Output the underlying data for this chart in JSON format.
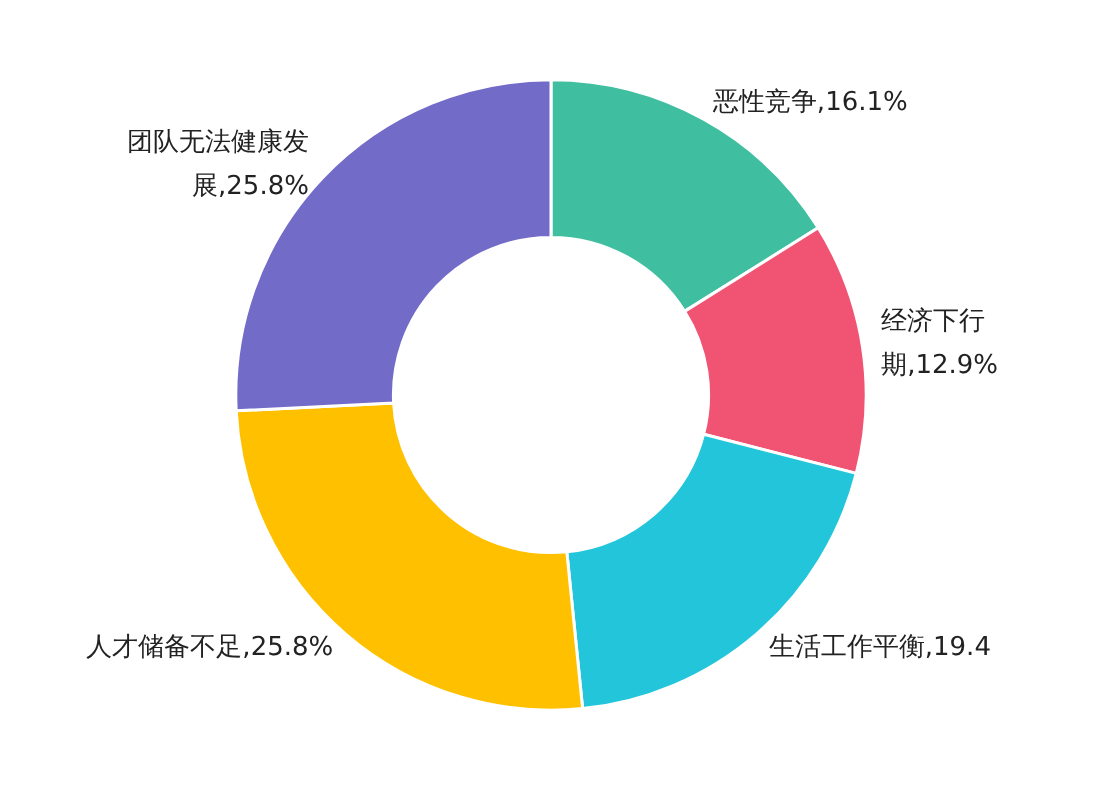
{
  "chart_data": {
    "type": "donut",
    "categories": [
      "恶性竞争",
      "经济下行期",
      "生活工作平衡",
      "人才储备不足",
      "团队无法健康发展"
    ],
    "values": [
      16.1,
      12.9,
      19.4,
      25.8,
      25.8
    ],
    "value_labels": [
      "16.1%",
      "12.9%",
      "19.4",
      "25.8%",
      "25.8%"
    ],
    "colors": [
      "#3fbfa0",
      "#f15473",
      "#22c5da",
      "#ffc000",
      "#736bc8"
    ]
  }
}
